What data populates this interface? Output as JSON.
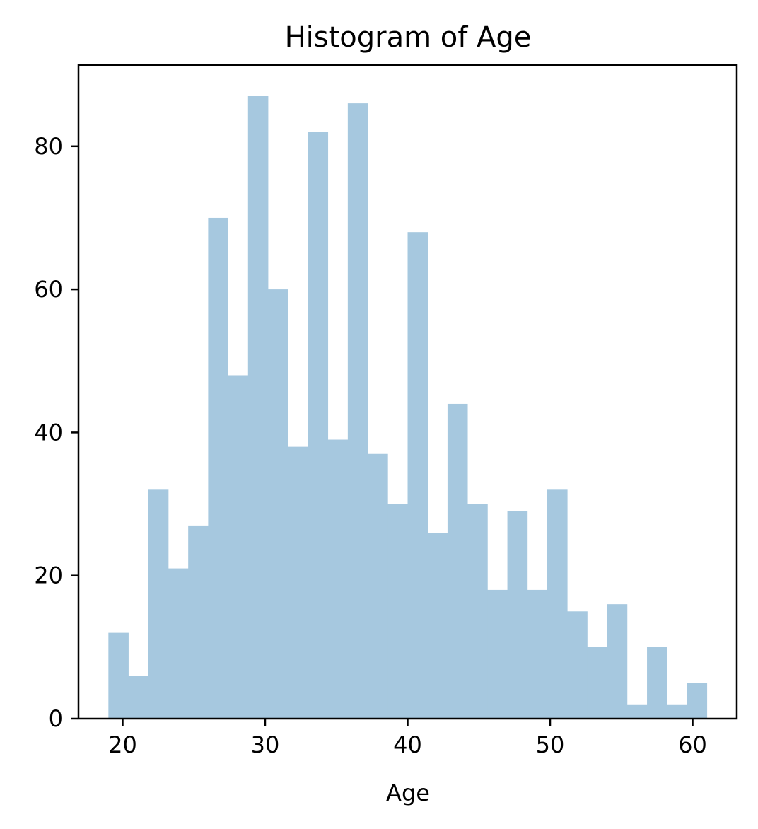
{
  "chart_data": {
    "type": "histogram",
    "title": "Histogram of Age",
    "xlabel": "Age",
    "ylabel": "",
    "bar_color": "#a6c8df",
    "bin_start": 19,
    "bin_width": 1.4,
    "values": [
      12,
      6,
      32,
      21,
      27,
      70,
      48,
      87,
      60,
      38,
      82,
      39,
      86,
      37,
      30,
      68,
      26,
      44,
      30,
      18,
      29,
      18,
      32,
      15,
      10,
      16,
      2,
      10,
      2,
      5
    ],
    "xlim": [
      16.9,
      63.1
    ],
    "ylim": [
      0,
      91.35
    ],
    "x_ticks": [
      20,
      30,
      40,
      50,
      60
    ],
    "y_ticks": [
      0,
      20,
      40,
      60,
      80
    ],
    "grid": false,
    "legend": "none"
  }
}
